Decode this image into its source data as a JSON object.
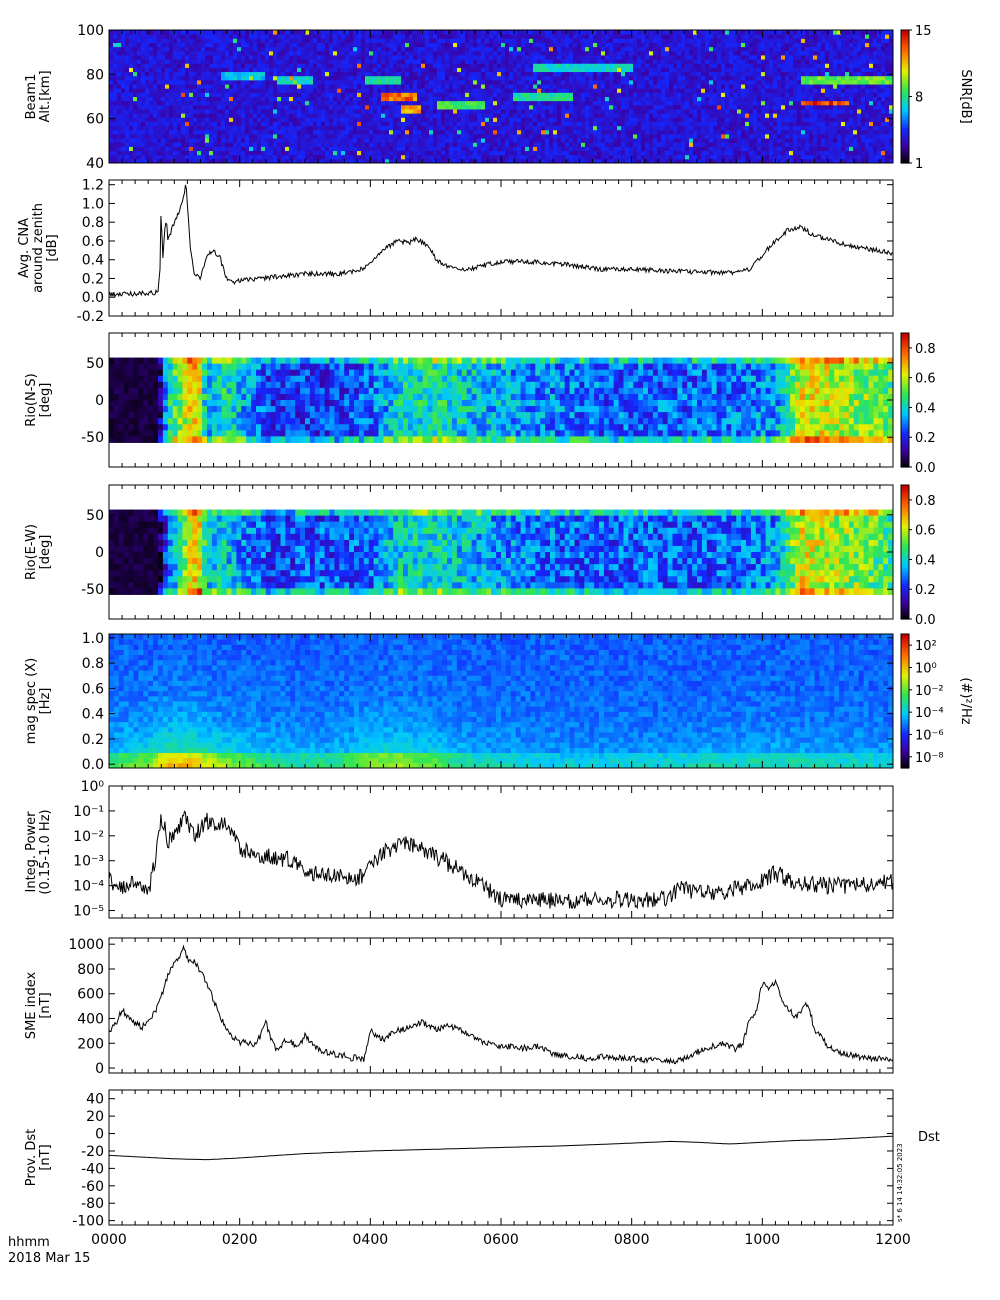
{
  "figure": {
    "time_label": "hhmm",
    "date_label": "2018 Mar 15",
    "stamp": "s* 6 14 14:32:05 2023",
    "x_ticks": [
      "0000",
      "0200",
      "0400",
      "0600",
      "0800",
      "1000",
      "1200"
    ]
  },
  "chart_data": [
    {
      "type": "heatmap",
      "ylabel": [
        "Beam1",
        "Alt.[km]"
      ],
      "ylim": [
        40,
        100
      ],
      "yticks": [
        40,
        60,
        80,
        100
      ],
      "colorbar": {
        "label": "SNR[dB]",
        "range": [
          1,
          15
        ],
        "ticks": [
          "1",
          "8",
          "15"
        ]
      },
      "features": [
        {
          "t": [
            450,
            480
          ],
          "alt": 64,
          "level": 0.9
        },
        {
          "t": [
            415,
            470
          ],
          "alt": 70,
          "level": 0.95
        },
        {
          "t": [
            390,
            445
          ],
          "alt": 78,
          "level": 0.55
        },
        {
          "t": [
            500,
            575
          ],
          "alt": 66,
          "level": 0.6
        },
        {
          "t": [
            620,
            710
          ],
          "alt": 70,
          "level": 0.55
        },
        {
          "t": [
            650,
            800
          ],
          "alt": 83,
          "level": 0.5
        },
        {
          "t": [
            1060,
            1130
          ],
          "alt": 67,
          "level": 1.0
        },
        {
          "t": [
            1060,
            1200
          ],
          "alt": 77,
          "level": 0.65
        },
        {
          "t": [
            260,
            310
          ],
          "alt": 77,
          "level": 0.5
        },
        {
          "t": [
            170,
            240
          ],
          "alt": 79,
          "level": 0.45
        }
      ]
    },
    {
      "type": "line",
      "ylabel": [
        "Avg. CNA",
        "around zenith",
        "[dB]"
      ],
      "ylim": [
        -0.2,
        1.25
      ],
      "yticks": [
        -0.2,
        0.0,
        0.2,
        0.4,
        0.6,
        0.8,
        1.0,
        1.2
      ],
      "series": [
        {
          "x": [
            0,
            20,
            50,
            75,
            78,
            80,
            82,
            85,
            88,
            90,
            95,
            100,
            110,
            115,
            118,
            120,
            125,
            130,
            140,
            150,
            160,
            170,
            180,
            190,
            200,
            230,
            260,
            300,
            350,
            390,
            420,
            440,
            460,
            470,
            490,
            500,
            520,
            550,
            600,
            650,
            700,
            750,
            800,
            850,
            900,
            950,
            980,
            1000,
            1020,
            1040,
            1060,
            1080,
            1100,
            1130,
            1160,
            1200
          ],
          "y": [
            0.03,
            0.03,
            0.04,
            0.05,
            0.3,
            1.05,
            0.35,
            0.7,
            0.85,
            0.6,
            0.7,
            0.8,
            0.95,
            1.1,
            1.23,
            1.0,
            0.5,
            0.25,
            0.2,
            0.45,
            0.5,
            0.42,
            0.2,
            0.15,
            0.18,
            0.2,
            0.22,
            0.25,
            0.25,
            0.3,
            0.5,
            0.6,
            0.58,
            0.62,
            0.55,
            0.4,
            0.32,
            0.3,
            0.38,
            0.38,
            0.35,
            0.3,
            0.3,
            0.28,
            0.27,
            0.26,
            0.3,
            0.45,
            0.6,
            0.72,
            0.75,
            0.65,
            0.62,
            0.55,
            0.52,
            0.47
          ]
        }
      ]
    },
    {
      "type": "heatmap",
      "ylabel": [
        "Rio(N-S)",
        "[deg]"
      ],
      "ylim": [
        -90,
        90
      ],
      "yticks": [
        -50,
        0,
        50
      ],
      "colorbar": {
        "range": [
          0.0,
          0.9
        ],
        "ticks": [
          "0.0",
          "0.2",
          "0.4",
          "0.6",
          "0.8"
        ]
      },
      "profile": {
        "x": [
          0,
          75,
          90,
          110,
          135,
          150,
          175,
          200,
          250,
          300,
          350,
          400,
          450,
          500,
          550,
          600,
          650,
          700,
          750,
          800,
          850,
          900,
          950,
          1020,
          1060,
          1100,
          1150,
          1200
        ],
        "level": [
          0.02,
          0.02,
          0.45,
          0.6,
          0.8,
          0.35,
          0.5,
          0.4,
          0.25,
          0.25,
          0.25,
          0.3,
          0.45,
          0.48,
          0.42,
          0.38,
          0.35,
          0.32,
          0.3,
          0.3,
          0.3,
          0.3,
          0.32,
          0.35,
          0.7,
          0.68,
          0.6,
          0.55
        ]
      }
    },
    {
      "type": "heatmap",
      "ylabel": [
        "Rio(E-W)",
        "[deg]"
      ],
      "ylim": [
        -90,
        90
      ],
      "yticks": [
        -50,
        0,
        50
      ],
      "colorbar": {
        "range": [
          0.0,
          0.9
        ],
        "ticks": [
          "0.0",
          "0.2",
          "0.4",
          "0.6",
          "0.8"
        ]
      },
      "profile": {
        "x": [
          0,
          75,
          90,
          110,
          135,
          150,
          175,
          200,
          250,
          300,
          350,
          400,
          450,
          500,
          550,
          600,
          650,
          700,
          750,
          800,
          850,
          900,
          950,
          1020,
          1060,
          1100,
          1150,
          1200
        ],
        "level": [
          0.02,
          0.02,
          0.3,
          0.5,
          0.8,
          0.4,
          0.45,
          0.35,
          0.25,
          0.28,
          0.28,
          0.3,
          0.45,
          0.45,
          0.4,
          0.35,
          0.32,
          0.3,
          0.3,
          0.3,
          0.3,
          0.3,
          0.3,
          0.35,
          0.7,
          0.65,
          0.6,
          0.5
        ]
      }
    },
    {
      "type": "heatmap",
      "ylabel": [
        "mag spec (X)",
        "[Hz]"
      ],
      "ylim": [
        -0.03,
        1.03
      ],
      "yticks": [
        "0.0",
        "0.2",
        "0.4",
        "0.6",
        "0.8",
        "1.0"
      ],
      "colorbar": {
        "label": "(#)²/Hz",
        "range": [
          -9,
          3
        ],
        "ticks": [
          "10²",
          "10⁰",
          "10⁻²",
          "10⁻⁴",
          "10⁻⁶",
          "10⁻⁸"
        ]
      },
      "activity": {
        "x": [
          0,
          60,
          80,
          100,
          130,
          160,
          200,
          250,
          300,
          350,
          400,
          450,
          500,
          550,
          600,
          700,
          800,
          900,
          1000,
          1100,
          1200
        ],
        "level": [
          0.5,
          0.55,
          0.85,
          0.9,
          0.9,
          0.7,
          0.55,
          0.4,
          0.35,
          0.4,
          0.65,
          0.65,
          0.55,
          0.35,
          0.3,
          0.25,
          0.25,
          0.3,
          0.35,
          0.3,
          0.28
        ]
      }
    },
    {
      "type": "line",
      "ylabel": [
        "Integ. Power",
        "(0.15-1.0 Hz)"
      ],
      "scale": "log",
      "ylim": [
        -5.3,
        0
      ],
      "yticks": [
        "10⁻⁵",
        "10⁻⁴",
        "10⁻³",
        "10⁻²",
        "10⁻¹",
        "10⁰"
      ],
      "series": [
        {
          "x": [
            0,
            20,
            40,
            60,
            70,
            80,
            90,
            100,
            115,
            130,
            150,
            180,
            200,
            240,
            280,
            300,
            350,
            380,
            400,
            420,
            450,
            470,
            500,
            550,
            580,
            600,
            650,
            700,
            750,
            800,
            850,
            880,
            900,
            950,
            1000,
            1020,
            1050,
            1100,
            1150,
            1200
          ],
          "y": [
            -3.8,
            -4.2,
            -3.7,
            -4.3,
            -3.0,
            -1.2,
            -2.2,
            -1.8,
            -1.3,
            -2.0,
            -1.4,
            -1.6,
            -2.5,
            -2.8,
            -3.0,
            -3.5,
            -3.6,
            -3.8,
            -3.3,
            -2.7,
            -2.3,
            -2.5,
            -2.8,
            -3.6,
            -4.2,
            -4.5,
            -4.6,
            -4.6,
            -4.5,
            -4.6,
            -4.5,
            -4.1,
            -4.3,
            -4.2,
            -3.8,
            -3.5,
            -3.9,
            -4.0,
            -4.0,
            -3.8
          ]
        }
      ]
    },
    {
      "type": "line",
      "ylabel": [
        "SME index",
        "[nT]"
      ],
      "ylim": [
        -40,
        1050
      ],
      "yticks": [
        0,
        200,
        400,
        600,
        800,
        1000
      ],
      "series": [
        {
          "x": [
            0,
            10,
            20,
            30,
            40,
            50,
            60,
            70,
            80,
            90,
            100,
            110,
            115,
            120,
            130,
            140,
            150,
            160,
            170,
            180,
            190,
            200,
            210,
            220,
            230,
            240,
            250,
            255,
            260,
            270,
            280,
            290,
            300,
            320,
            340,
            360,
            370,
            380,
            390,
            400,
            420,
            440,
            460,
            480,
            500,
            520,
            540,
            560,
            580,
            600,
            620,
            640,
            660,
            680,
            700,
            720,
            740,
            760,
            780,
            800,
            820,
            840,
            860,
            880,
            900,
            920,
            940,
            950,
            960,
            970,
            980,
            990,
            1000,
            1010,
            1020,
            1030,
            1040,
            1050,
            1060,
            1070,
            1080,
            1090,
            1100,
            1120,
            1140,
            1160,
            1180,
            1200
          ],
          "y": [
            300,
            350,
            470,
            400,
            360,
            330,
            380,
            450,
            580,
            750,
            850,
            920,
            970,
            880,
            860,
            780,
            680,
            550,
            420,
            300,
            250,
            200,
            220,
            180,
            240,
            370,
            200,
            160,
            150,
            220,
            200,
            180,
            260,
            150,
            120,
            100,
            80,
            90,
            60,
            300,
            230,
            300,
            330,
            370,
            310,
            350,
            300,
            240,
            200,
            180,
            170,
            160,
            180,
            110,
            100,
            90,
            70,
            100,
            80,
            80,
            60,
            70,
            50,
            80,
            130,
            170,
            200,
            180,
            150,
            200,
            380,
            450,
            680,
            630,
            700,
            560,
            480,
            400,
            470,
            530,
            300,
            250,
            180,
            120,
            100,
            80,
            75,
            70
          ]
        }
      ]
    },
    {
      "type": "line",
      "ylabel": [
        "Prov. Dst",
        "[nT]"
      ],
      "ylim": [
        -105,
        50
      ],
      "yticks": [
        -100,
        -80,
        -60,
        -40,
        -20,
        0,
        20,
        40
      ],
      "legend": "Dst",
      "series": [
        {
          "name": "Dst",
          "x": [
            0,
            50,
            100,
            150,
            200,
            300,
            400,
            500,
            600,
            700,
            800,
            860,
            900,
            950,
            1000,
            1050,
            1100,
            1150,
            1200
          ],
          "y": [
            -25,
            -27,
            -29,
            -30,
            -28,
            -23,
            -20,
            -18,
            -16,
            -14,
            -11,
            -9,
            -10,
            -12,
            -10,
            -8,
            -7,
            -5,
            -3
          ]
        }
      ]
    }
  ]
}
